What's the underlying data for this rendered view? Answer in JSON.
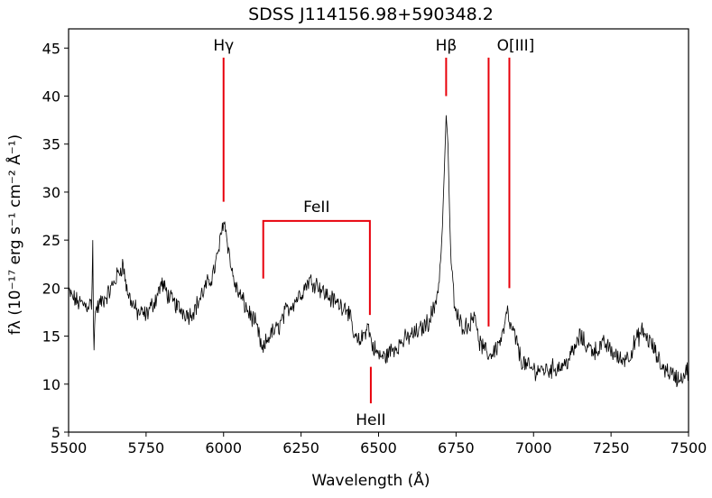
{
  "chart_data": {
    "type": "line",
    "title": "SDSS J114156.98+590348.2",
    "xlabel": "Wavelength (Å)",
    "ylabel": "fλ (10⁻¹⁷ erg s⁻¹ cm⁻² Å⁻¹)",
    "xlim": [
      5500,
      7500
    ],
    "ylim": [
      5,
      47
    ],
    "grid": false,
    "x_ticks": [
      5500,
      5750,
      6000,
      6250,
      6500,
      6750,
      7000,
      7250,
      7500
    ],
    "y_ticks": [
      5,
      10,
      15,
      20,
      25,
      30,
      35,
      40,
      45
    ],
    "line_color": "#000000",
    "annotation_color": "#e8000b",
    "spectrum_anchors": [
      [
        5500,
        19.5
      ],
      [
        5530,
        18.5
      ],
      [
        5560,
        18.2
      ],
      [
        5575,
        18.5
      ],
      [
        5578,
        25
      ],
      [
        5581,
        12.2
      ],
      [
        5585,
        17.5
      ],
      [
        5600,
        18.3
      ],
      [
        5630,
        19.5
      ],
      [
        5660,
        21.5
      ],
      [
        5675,
        22.5
      ],
      [
        5690,
        19.5
      ],
      [
        5720,
        17.5
      ],
      [
        5750,
        17.2
      ],
      [
        5780,
        18.8
      ],
      [
        5800,
        20.5
      ],
      [
        5830,
        18.8
      ],
      [
        5860,
        17.8
      ],
      [
        5890,
        17.2
      ],
      [
        5910,
        18.0
      ],
      [
        5940,
        20.0
      ],
      [
        5960,
        21.0
      ],
      [
        5975,
        22.5
      ],
      [
        5990,
        25.0
      ],
      [
        6000,
        27.3
      ],
      [
        6010,
        25.5
      ],
      [
        6025,
        22.0
      ],
      [
        6040,
        20.0
      ],
      [
        6060,
        18.8
      ],
      [
        6080,
        17.5
      ],
      [
        6100,
        16.5
      ],
      [
        6115,
        15.0
      ],
      [
        6125,
        13.2
      ],
      [
        6135,
        14.2
      ],
      [
        6150,
        15.2
      ],
      [
        6175,
        15.8
      ],
      [
        6200,
        17.5
      ],
      [
        6225,
        18.5
      ],
      [
        6250,
        19.5
      ],
      [
        6275,
        20.8
      ],
      [
        6300,
        20.5
      ],
      [
        6325,
        19.5
      ],
      [
        6350,
        18.8
      ],
      [
        6375,
        18.3
      ],
      [
        6400,
        18.0
      ],
      [
        6420,
        15.0
      ],
      [
        6435,
        14.3
      ],
      [
        6450,
        15.0
      ],
      [
        6465,
        16.2
      ],
      [
        6480,
        14.0
      ],
      [
        6500,
        13.0
      ],
      [
        6520,
        12.8
      ],
      [
        6540,
        13.5
      ],
      [
        6560,
        14.0
      ],
      [
        6580,
        14.5
      ],
      [
        6600,
        15.0
      ],
      [
        6630,
        15.5
      ],
      [
        6660,
        16.5
      ],
      [
        6680,
        18.0
      ],
      [
        6695,
        20.5
      ],
      [
        6705,
        25.5
      ],
      [
        6712,
        32.0
      ],
      [
        6718,
        38.0
      ],
      [
        6724,
        35.0
      ],
      [
        6732,
        24.0
      ],
      [
        6745,
        18.0
      ],
      [
        6760,
        16.5
      ],
      [
        6780,
        16.0
      ],
      [
        6800,
        16.5
      ],
      [
        6810,
        18.0
      ],
      [
        6820,
        14.8
      ],
      [
        6840,
        13.5
      ],
      [
        6860,
        13.0
      ],
      [
        6880,
        13.8
      ],
      [
        6900,
        15.0
      ],
      [
        6915,
        17.5
      ],
      [
        6925,
        16.0
      ],
      [
        6940,
        15.0
      ],
      [
        6960,
        12.5
      ],
      [
        6980,
        11.8
      ],
      [
        7000,
        11.5
      ],
      [
        7050,
        11.5
      ],
      [
        7100,
        12.0
      ],
      [
        7130,
        13.5
      ],
      [
        7150,
        15.0
      ],
      [
        7170,
        14.0
      ],
      [
        7200,
        13.5
      ],
      [
        7230,
        14.2
      ],
      [
        7250,
        13.5
      ],
      [
        7280,
        12.5
      ],
      [
        7310,
        13.0
      ],
      [
        7330,
        14.5
      ],
      [
        7350,
        15.5
      ],
      [
        7380,
        14.2
      ],
      [
        7410,
        12.0
      ],
      [
        7440,
        11.2
      ],
      [
        7470,
        10.5
      ],
      [
        7500,
        11.5
      ]
    ],
    "annotations": [
      {
        "label": "Hγ",
        "x": 6000,
        "y_from": 29,
        "y_to": 44
      },
      {
        "label": "Hβ",
        "x": 6718,
        "y_from": 40,
        "y_to": 44
      },
      {
        "label": "O[III]",
        "x": 6855,
        "y_from": 16,
        "y_to": 44
      },
      {
        "label": "",
        "x": 6922,
        "y_from": 20,
        "y_to": 44
      },
      {
        "label": "HeII",
        "x": 6475,
        "y_from": 8,
        "y_to": 11.8
      }
    ],
    "feii_bracket": {
      "label": "FeII",
      "x_start": 6128,
      "x_end": 6472,
      "y_top": 27,
      "y_left": 21,
      "y_right": 17.2
    }
  }
}
